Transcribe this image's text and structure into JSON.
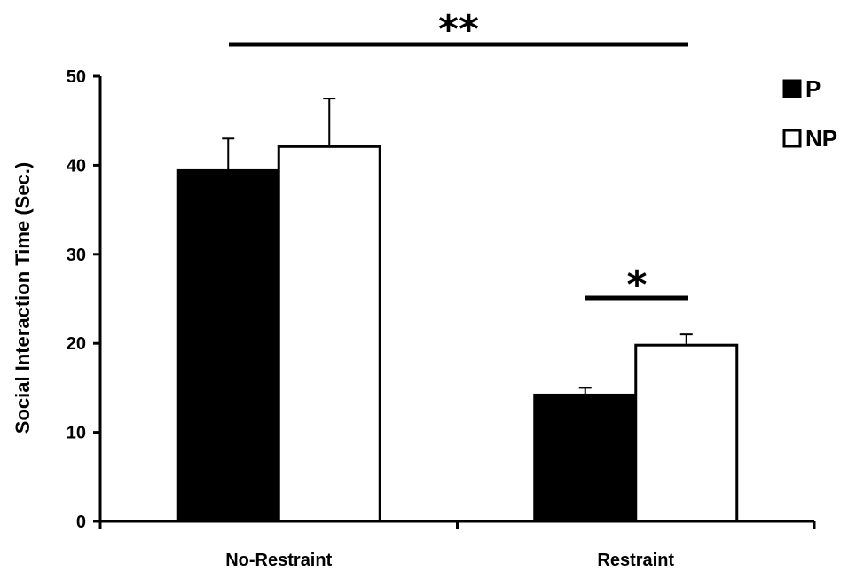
{
  "chart_data": {
    "type": "bar",
    "title": "",
    "xlabel": "",
    "ylabel": "Social Interaction Time (Sec.)",
    "ylim": [
      0,
      50
    ],
    "yticks": [
      0,
      10,
      20,
      30,
      40,
      50
    ],
    "categories": [
      "No-Restraint",
      "Restraint"
    ],
    "series": [
      {
        "name": "P",
        "values": [
          39.4,
          14.2
        ],
        "errors": [
          3.6,
          0.8
        ],
        "fill": "#000000"
      },
      {
        "name": "NP",
        "values": [
          42.1,
          19.8
        ],
        "errors": [
          5.4,
          1.2
        ],
        "fill": "#ffffff"
      }
    ],
    "legend_position": "top-right",
    "grid": false,
    "annotations": [
      {
        "label": "**",
        "spans": "across-conditions"
      },
      {
        "label": "*",
        "spans": "within-Restraint"
      }
    ]
  }
}
